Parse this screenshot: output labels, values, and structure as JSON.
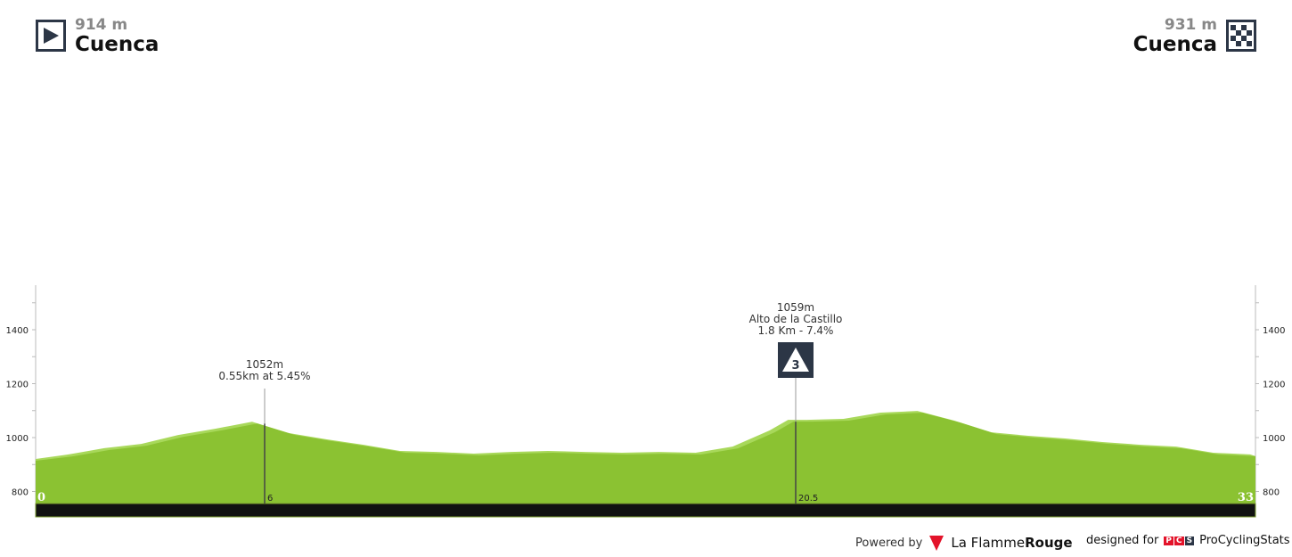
{
  "start": {
    "altitude": "914 m",
    "city": "Cuenca",
    "icon": "play-icon"
  },
  "finish": {
    "altitude": "931 m",
    "city": "Cuenca",
    "icon": "checkered-flag-icon"
  },
  "chart_data": {
    "type": "area",
    "xlabel": "",
    "ylabel": "",
    "xlim": [
      0,
      33
    ],
    "ylim": [
      754,
      1560
    ],
    "y_ticks": [
      800,
      1000,
      1200,
      1400
    ],
    "x_labels": [
      "0",
      "6",
      "20.5",
      "33"
    ],
    "x": [
      0,
      1,
      2,
      3,
      4,
      5,
      6,
      7,
      8,
      9,
      10,
      11,
      12,
      13,
      14,
      15,
      16,
      17,
      18,
      19,
      20,
      20.5,
      21,
      22,
      23,
      24,
      25,
      26,
      27,
      28,
      29,
      30,
      31,
      32,
      33
    ],
    "elevation": [
      914,
      930,
      954,
      970,
      1003,
      1026,
      1052,
      1010,
      987,
      967,
      944,
      940,
      934,
      940,
      944,
      940,
      937,
      940,
      937,
      960,
      1020,
      1059,
      1059,
      1063,
      1086,
      1092,
      1056,
      1013,
      1000,
      990,
      977,
      967,
      960,
      937,
      931
    ],
    "annotations": [
      {
        "km": 6,
        "lines": [
          "1052m",
          "0.55km at 5.45%"
        ]
      },
      {
        "km": 20.5,
        "lines": [
          "1059m",
          "Alto de la Castillo",
          "1.8 Km - 7.4%"
        ],
        "category": "3"
      }
    ],
    "colors": {
      "fill": "#8bc232",
      "light": "#a8d85a",
      "bar": "#111111",
      "axis": "#bbbbbb"
    }
  },
  "footer": {
    "powered": "Powered by",
    "brand1": "La Flamme",
    "brand2": "Rouge",
    "designed": "designed for",
    "pcs": [
      "P",
      "C",
      "S"
    ],
    "site": "ProCyclingStats"
  }
}
